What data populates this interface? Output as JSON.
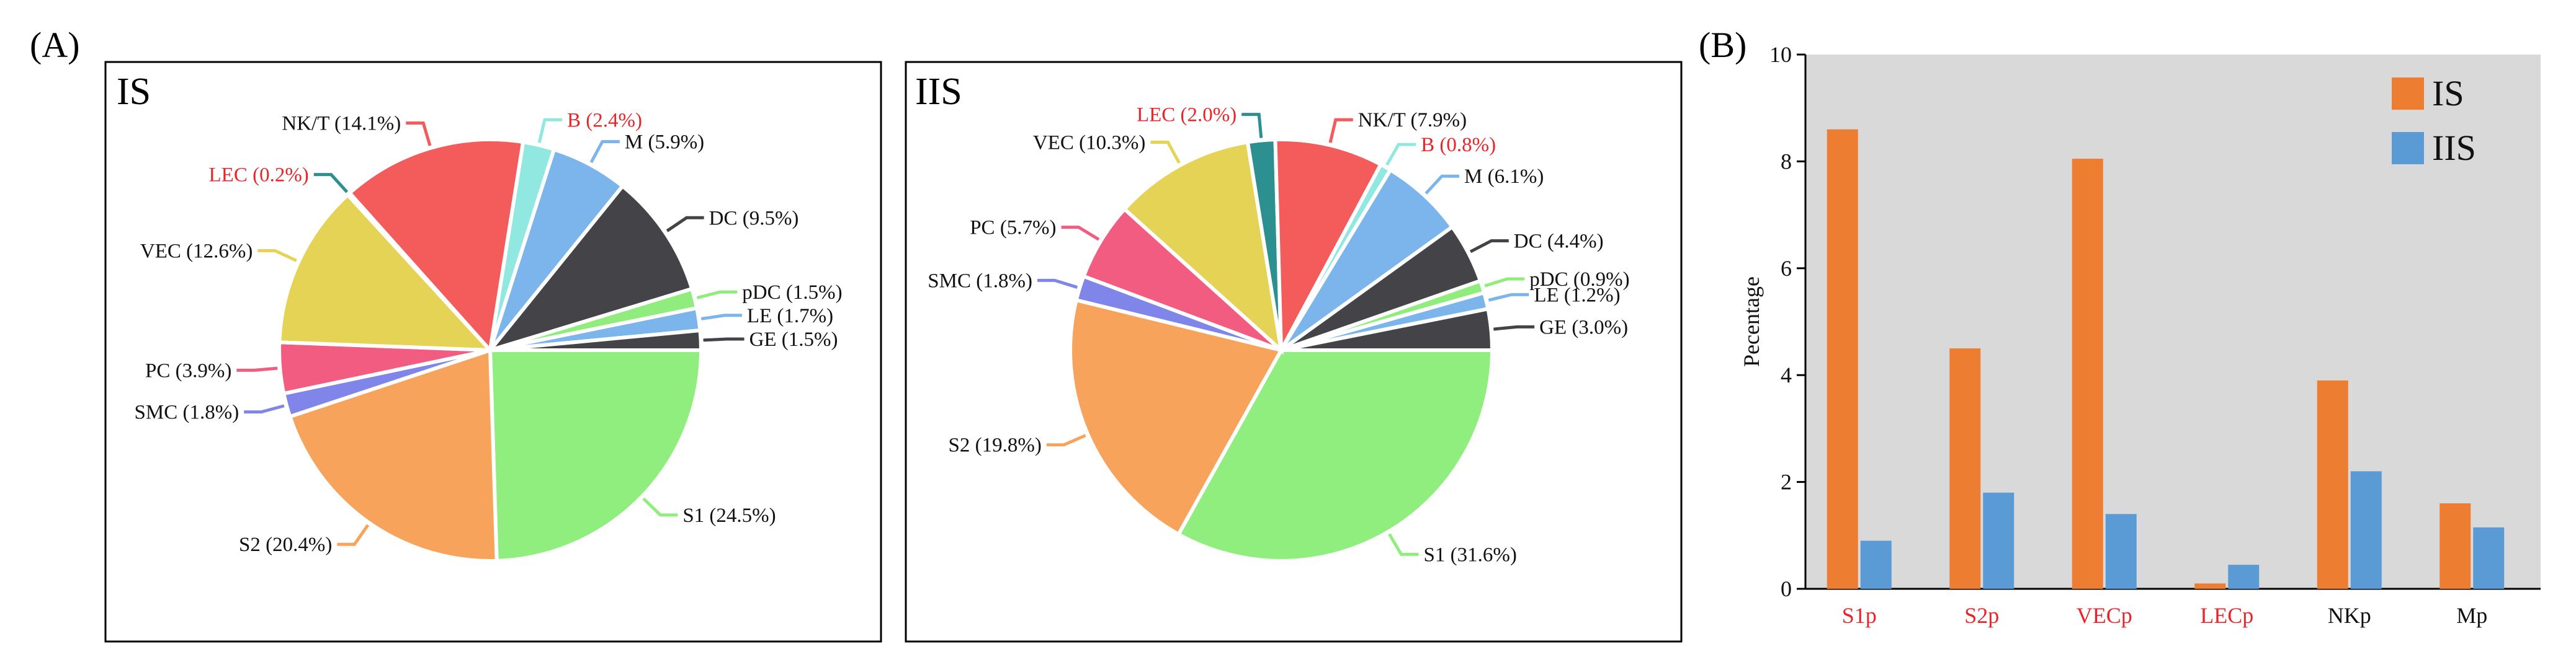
{
  "panel_labels": {
    "a": "(A)",
    "b": "(B)"
  },
  "colors": {
    "S1": "#90EE7E",
    "S2": "#F7A35C",
    "VEC": "#E4D354",
    "LEC": "#2B908F",
    "NKT": "#F45B5B",
    "B": "#91E8E1",
    "M": "#7CB5EC",
    "DC": "#434348",
    "pDC": "#90ED7D",
    "LE": "#7CB5EC",
    "GE": "#434348",
    "SMC": "#8085E9",
    "PC": "#F15C80",
    "IS_bar": "#ED7D31",
    "IIS_bar": "#5B9BD5",
    "highlight_text": "#E8262A"
  },
  "chart_data": [
    {
      "type": "pie",
      "title": "IS",
      "slices": [
        {
          "label": "S1 (24.5%)",
          "value": 24.5,
          "color": "#90EE7E",
          "highlight": false
        },
        {
          "label": "S2 (20.4%)",
          "value": 20.4,
          "color": "#F7A35C",
          "highlight": false
        },
        {
          "label": "SMC (1.8%)",
          "value": 1.8,
          "color": "#8085E9",
          "highlight": false
        },
        {
          "label": "PC (3.9%)",
          "value": 3.9,
          "color": "#F15C80",
          "highlight": false
        },
        {
          "label": "VEC (12.6%)",
          "value": 12.6,
          "color": "#E4D354",
          "highlight": false
        },
        {
          "label": "LEC (0.2%)",
          "value": 0.2,
          "color": "#2B908F",
          "highlight": true
        },
        {
          "label": "NK/T (14.1%)",
          "value": 14.1,
          "color": "#F45B5B",
          "highlight": false
        },
        {
          "label": "B (2.4%)",
          "value": 2.4,
          "color": "#91E8E1",
          "highlight": true
        },
        {
          "label": "M (5.9%)",
          "value": 5.9,
          "color": "#7CB5EC",
          "highlight": false
        },
        {
          "label": "DC (9.5%)",
          "value": 9.5,
          "color": "#434348",
          "highlight": false
        },
        {
          "label": "pDC (1.5%)",
          "value": 1.5,
          "color": "#90ED7D",
          "highlight": false
        },
        {
          "label": "LE (1.7%)",
          "value": 1.7,
          "color": "#7CB5EC",
          "highlight": false
        },
        {
          "label": "GE (1.5%)",
          "value": 1.5,
          "color": "#434348",
          "highlight": false
        }
      ]
    },
    {
      "type": "pie",
      "title": "IIS",
      "slices": [
        {
          "label": "S1 (31.6%)",
          "value": 31.6,
          "color": "#90EE7E",
          "highlight": false
        },
        {
          "label": "S2 (19.8%)",
          "value": 19.8,
          "color": "#F7A35C",
          "highlight": false
        },
        {
          "label": "SMC (1.8%)",
          "value": 1.8,
          "color": "#8085E9",
          "highlight": false
        },
        {
          "label": "PC (5.7%)",
          "value": 5.7,
          "color": "#F15C80",
          "highlight": false
        },
        {
          "label": "VEC (10.3%)",
          "value": 10.3,
          "color": "#E4D354",
          "highlight": false
        },
        {
          "label": "LEC (2.0%)",
          "value": 2.0,
          "color": "#2B908F",
          "highlight": true
        },
        {
          "label": "NK/T (7.9%)",
          "value": 7.9,
          "color": "#F45B5B",
          "highlight": false
        },
        {
          "label": "B (0.8%)",
          "value": 0.8,
          "color": "#91E8E1",
          "highlight": true
        },
        {
          "label": "M (6.1%)",
          "value": 6.1,
          "color": "#7CB5EC",
          "highlight": false
        },
        {
          "label": "DC (4.4%)",
          "value": 4.4,
          "color": "#434348",
          "highlight": false
        },
        {
          "label": "pDC (0.9%)",
          "value": 0.9,
          "color": "#90ED7D",
          "highlight": false
        },
        {
          "label": "LE (1.2%)",
          "value": 1.2,
          "color": "#7CB5EC",
          "highlight": false
        },
        {
          "label": "GE (3.0%)",
          "value": 3.0,
          "color": "#434348",
          "highlight": false
        }
      ]
    },
    {
      "type": "bar",
      "ylabel": "Pecentage",
      "ylim": [
        0,
        10
      ],
      "yticks": [
        0,
        2,
        4,
        6,
        8,
        10
      ],
      "grid": false,
      "background": "#D9D9D9",
      "legend_position": "top-right",
      "categories": [
        "S1p",
        "S2p",
        "VECp",
        "LECp",
        "NKp",
        "Mp"
      ],
      "category_highlight": [
        true,
        true,
        true,
        true,
        false,
        false
      ],
      "series": [
        {
          "name": "IS",
          "color": "#ED7D31",
          "values": [
            8.6,
            4.5,
            8.05,
            0.1,
            3.9,
            1.6
          ]
        },
        {
          "name": "IIS",
          "color": "#5B9BD5",
          "values": [
            0.9,
            1.8,
            1.4,
            0.45,
            2.2,
            1.15
          ]
        }
      ]
    }
  ]
}
